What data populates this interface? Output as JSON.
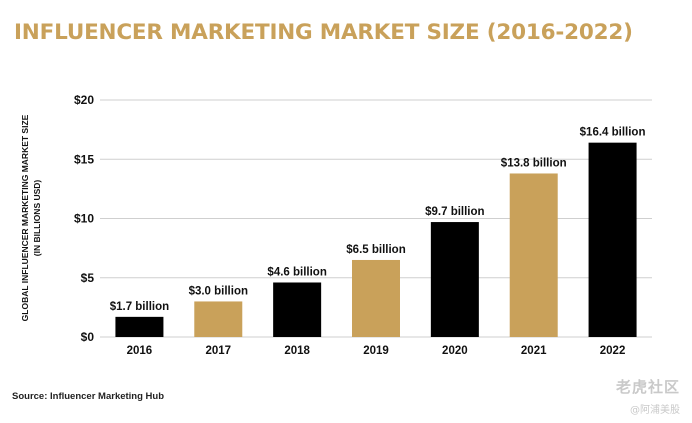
{
  "header": {
    "title": "INFLUENCER MARKETING MARKET SIZE (2016-2022)"
  },
  "footer": {
    "source": "Source: Influencer Marketing Hub"
  },
  "watermark": {
    "main": "老虎社区",
    "sub": "@阿浦美股"
  },
  "colors": {
    "black_bar": "#000000",
    "gold_bar": "#c9a15a",
    "grid": "#cfcfcf",
    "title": "#c9a15a",
    "text": "#111111"
  },
  "chart_data": {
    "type": "bar",
    "title": "INFLUENCER MARKETING MARKET SIZE (2016-2022)",
    "ylabel": "GLOBAL INFLUENCER MARKETING MARKET SIZE",
    "ylabel_sub": "(IN BILLIONS USD)",
    "xlabel": "",
    "categories": [
      "2016",
      "2017",
      "2018",
      "2019",
      "2020",
      "2021",
      "2022"
    ],
    "values": [
      1.7,
      3.0,
      4.6,
      6.5,
      9.7,
      13.8,
      16.4
    ],
    "data_labels": [
      "$1.7 billion",
      "$3.0 billion",
      "$4.6 billion",
      "$6.5 billion",
      "$9.7 billion",
      "$13.8 billion",
      "$16.4 billion"
    ],
    "bar_colors": [
      "#000000",
      "#c9a15a",
      "#000000",
      "#c9a15a",
      "#000000",
      "#c9a15a",
      "#000000"
    ],
    "yticks": [
      0,
      5,
      10,
      15,
      20
    ],
    "ytick_labels": [
      "$0",
      "$5",
      "$10",
      "$15",
      "$20"
    ],
    "ylim": [
      0,
      20
    ],
    "grid": true,
    "legend": "none"
  }
}
